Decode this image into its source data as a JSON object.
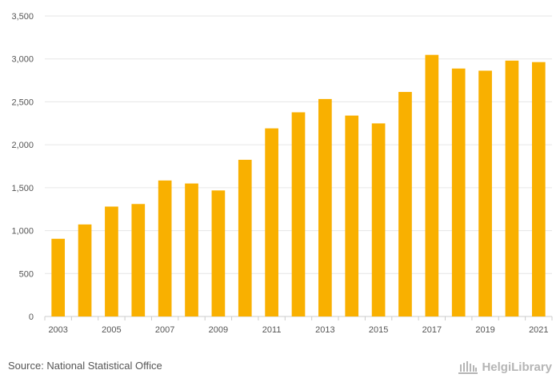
{
  "chart_data": {
    "type": "bar",
    "title": "",
    "xlabel": "",
    "ylabel": "",
    "categories": [
      "2003",
      "2004",
      "2005",
      "2006",
      "2007",
      "2008",
      "2009",
      "2010",
      "2011",
      "2012",
      "2013",
      "2014",
      "2015",
      "2016",
      "2017",
      "2018",
      "2019",
      "2020",
      "2021"
    ],
    "x_tick_labels": [
      "2003",
      "2005",
      "2007",
      "2009",
      "2011",
      "2013",
      "2015",
      "2017",
      "2019",
      "2021"
    ],
    "values": [
      905,
      1072,
      1280,
      1310,
      1584,
      1549,
      1468,
      1825,
      2191,
      2378,
      2533,
      2340,
      2249,
      2615,
      3047,
      2888,
      2863,
      2980,
      2963
    ],
    "ylim": [
      0,
      3500
    ],
    "y_ticks": [
      0,
      500,
      1000,
      1500,
      2000,
      2500,
      3000,
      3500
    ],
    "y_tick_labels": [
      "0",
      "500",
      "1,000",
      "1,500",
      "2,000",
      "2,500",
      "3,000",
      "3,500"
    ],
    "grid": true,
    "bar_color": "#F9B000"
  },
  "footer": {
    "source": "Source: National Statistical Office",
    "brand": "HelgiLibrary",
    "brand_icon": "library-building-icon"
  }
}
